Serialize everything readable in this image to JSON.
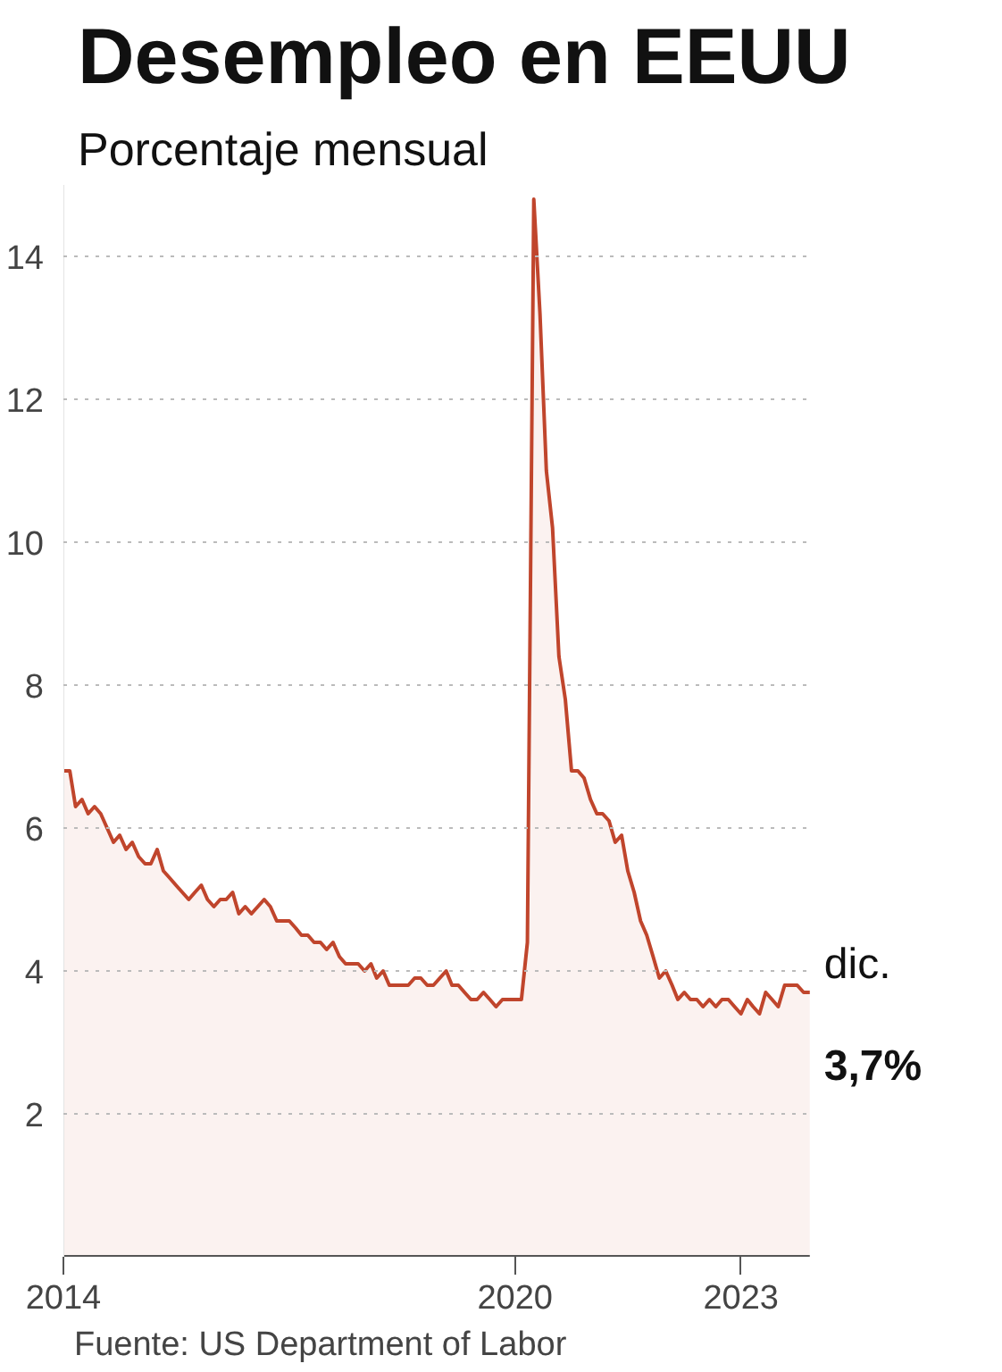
{
  "chart_data": {
    "type": "area",
    "title": "Desempleo en EEUU",
    "subtitle": "Porcentaje mensual",
    "x": [
      "2014-01",
      "2014-02",
      "2014-03",
      "2014-04",
      "2014-05",
      "2014-06",
      "2014-07",
      "2014-08",
      "2014-09",
      "2014-10",
      "2014-11",
      "2014-12",
      "2015-01",
      "2015-02",
      "2015-03",
      "2015-04",
      "2015-05",
      "2015-06",
      "2015-07",
      "2015-08",
      "2015-09",
      "2015-10",
      "2015-11",
      "2015-12",
      "2016-01",
      "2016-02",
      "2016-03",
      "2016-04",
      "2016-05",
      "2016-06",
      "2016-07",
      "2016-08",
      "2016-09",
      "2016-10",
      "2016-11",
      "2016-12",
      "2017-01",
      "2017-02",
      "2017-03",
      "2017-04",
      "2017-05",
      "2017-06",
      "2017-07",
      "2017-08",
      "2017-09",
      "2017-10",
      "2017-11",
      "2017-12",
      "2018-01",
      "2018-02",
      "2018-03",
      "2018-04",
      "2018-05",
      "2018-06",
      "2018-07",
      "2018-08",
      "2018-09",
      "2018-10",
      "2018-11",
      "2018-12",
      "2019-01",
      "2019-02",
      "2019-03",
      "2019-04",
      "2019-05",
      "2019-06",
      "2019-07",
      "2019-08",
      "2019-09",
      "2019-10",
      "2019-11",
      "2019-12",
      "2020-01",
      "2020-02",
      "2020-03",
      "2020-04",
      "2020-05",
      "2020-06",
      "2020-07",
      "2020-08",
      "2020-09",
      "2020-10",
      "2020-11",
      "2020-12",
      "2021-01",
      "2021-02",
      "2021-03",
      "2021-04",
      "2021-05",
      "2021-06",
      "2021-07",
      "2021-08",
      "2021-09",
      "2021-10",
      "2021-11",
      "2021-12",
      "2022-01",
      "2022-02",
      "2022-03",
      "2022-04",
      "2022-05",
      "2022-06",
      "2022-07",
      "2022-08",
      "2022-09",
      "2022-10",
      "2022-11",
      "2022-12",
      "2023-01",
      "2023-02",
      "2023-03",
      "2023-04",
      "2023-05",
      "2023-06",
      "2023-07",
      "2023-08",
      "2023-09",
      "2023-10",
      "2023-11",
      "2023-12"
    ],
    "series": [
      {
        "color": "#c0452c",
        "values": [
          6.8,
          6.8,
          6.3,
          6.4,
          6.2,
          6.3,
          6.2,
          6.0,
          5.8,
          5.9,
          5.7,
          5.8,
          5.6,
          5.5,
          5.5,
          5.7,
          5.4,
          5.3,
          5.2,
          5.1,
          5.0,
          5.1,
          5.2,
          5.0,
          4.9,
          5.0,
          5.0,
          5.1,
          4.8,
          4.9,
          4.8,
          4.9,
          5.0,
          4.9,
          4.7,
          4.7,
          4.7,
          4.6,
          4.5,
          4.5,
          4.4,
          4.4,
          4.3,
          4.4,
          4.2,
          4.1,
          4.1,
          4.1,
          4.0,
          4.1,
          3.9,
          4.0,
          3.8,
          3.8,
          3.8,
          3.8,
          3.9,
          3.9,
          3.8,
          3.8,
          3.9,
          4.0,
          3.8,
          3.8,
          3.7,
          3.6,
          3.6,
          3.7,
          3.6,
          3.5,
          3.6,
          3.6,
          3.6,
          3.6,
          4.4,
          14.8,
          13.2,
          11.0,
          10.2,
          8.4,
          7.8,
          6.8,
          6.8,
          6.7,
          6.4,
          6.2,
          6.2,
          6.1,
          5.8,
          5.9,
          5.4,
          5.1,
          4.7,
          4.5,
          4.2,
          3.9,
          4.0,
          3.8,
          3.6,
          3.7,
          3.6,
          3.6,
          3.5,
          3.6,
          3.5,
          3.6,
          3.6,
          3.5,
          3.4,
          3.6,
          3.5,
          3.4,
          3.7,
          3.6,
          3.5,
          3.8,
          3.8,
          3.8,
          3.7,
          3.7
        ]
      }
    ],
    "xlim": [
      "2014-01",
      "2023-12"
    ],
    "xticks": [
      "2014",
      "2020",
      "2023"
    ],
    "ylim": [
      0,
      15
    ],
    "yticks": [
      2,
      4,
      6,
      8,
      10,
      12,
      14
    ],
    "grid": "y",
    "annotations": [
      {
        "text": "dic.",
        "x": "2023-12",
        "y": 3.7
      },
      {
        "text": "3,7%",
        "x": "2023-12",
        "y": 3.7
      },
      "Fuente: US Department of Labor"
    ]
  }
}
